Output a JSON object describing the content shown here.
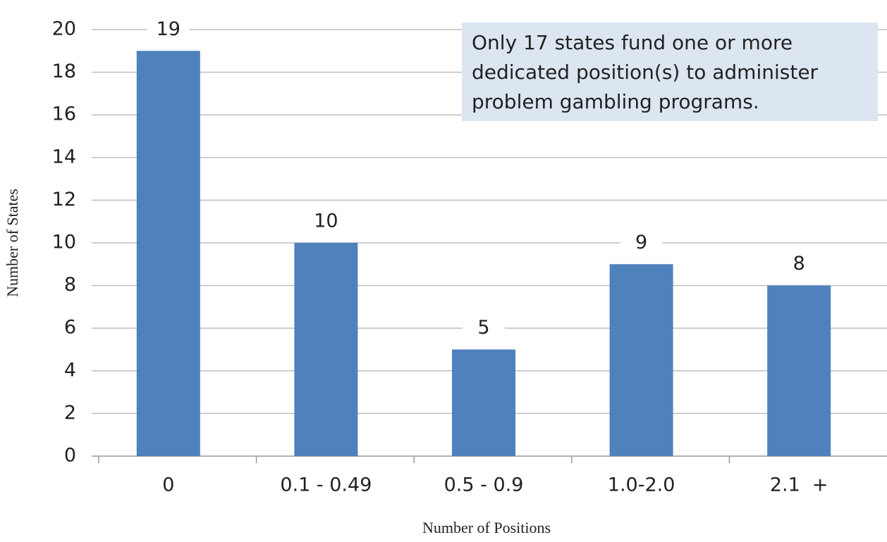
{
  "chart_data": {
    "type": "bar",
    "categories": [
      "0",
      "0.1 - 0.49",
      "0.5 - 0.9",
      "1.0-2.0",
      "2.1  +"
    ],
    "values": [
      19,
      10,
      5,
      9,
      8
    ],
    "color": "#4f81bd",
    "ylim": [
      0,
      20
    ],
    "yticks": [
      0,
      2,
      4,
      6,
      8,
      10,
      12,
      14,
      16,
      18,
      20
    ],
    "grid": true,
    "x_label": "Number of Positions",
    "y_label": "Number of States",
    "annotation": [
      "Only 17 states  fund one or more",
      "dedicated position(s) to administer",
      "problem gambling programs."
    ]
  }
}
